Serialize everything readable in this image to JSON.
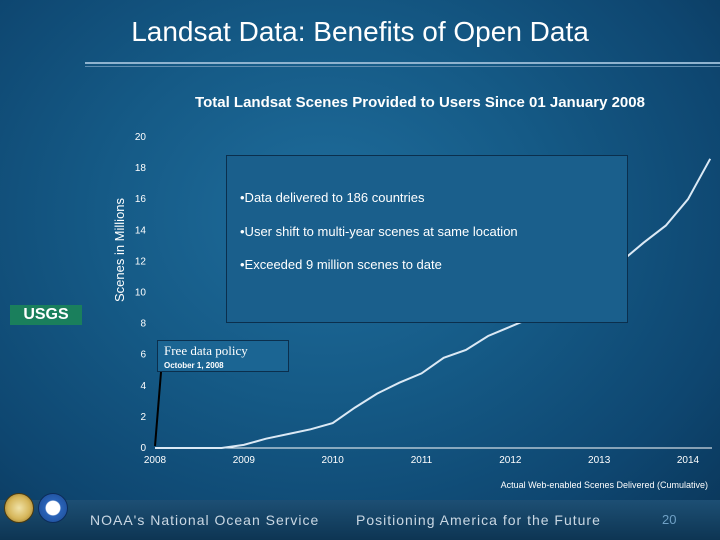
{
  "slide": {
    "title": "Landsat Data:  Benefits of Open Data",
    "page_number": "20",
    "footer_left": "NOAA's National Ocean Service",
    "footer_right": "Positioning America for the Future"
  },
  "chart_data": {
    "type": "line",
    "title": "Total Landsat Scenes Provided to Users Since  01 January 2008",
    "xlabel": "",
    "ylabel": "Scenes in Millions",
    "x_ticks": [
      "2008",
      "2009",
      "2010",
      "2011",
      "2012",
      "2013",
      "2014"
    ],
    "y_ticks": [
      "0",
      "2",
      "4",
      "6",
      "8",
      "10",
      "12",
      "14",
      "16",
      "18",
      "20"
    ],
    "ylim": [
      0,
      20
    ],
    "xlim": [
      2008,
      2014.3
    ],
    "grid": false,
    "series": [
      {
        "x": [
          2008,
          2008.75,
          2009.0,
          2009.25,
          2009.5,
          2009.75,
          2010.0,
          2010.25,
          2010.5,
          2010.75,
          2011.0,
          2011.25,
          2011.5,
          2011.75,
          2012.0,
          2012.25,
          2012.5,
          2012.75,
          2013.0,
          2013.25,
          2013.5,
          2013.75,
          2014.0,
          2014.25
        ],
        "values": [
          0.0,
          0.0,
          0.2,
          0.6,
          0.9,
          1.2,
          1.6,
          2.6,
          3.5,
          4.2,
          4.8,
          5.8,
          6.3,
          7.2,
          7.8,
          8.4,
          9.1,
          10.0,
          10.8,
          12.0,
          13.2,
          14.3,
          16.0,
          18.6
        ]
      }
    ],
    "annotations": {
      "notes": [
        "•Data delivered to 186 countries",
        "•User shift to multi-year scenes at same location",
        "•Exceeded 9 million scenes to date"
      ],
      "policy_label": "Free data policy",
      "policy_date": "October 1, 2008",
      "caption": "Actual Web-enabled Scenes Delivered (Cumulative)"
    },
    "colors": {
      "line": "#dbe9f5",
      "axis": "#ffffff",
      "arrow": "#000000"
    }
  },
  "logos": {
    "usgs": "USGS",
    "doi_seal": "doi-seal-icon",
    "noaa_seal": "noaa-seal-icon"
  }
}
